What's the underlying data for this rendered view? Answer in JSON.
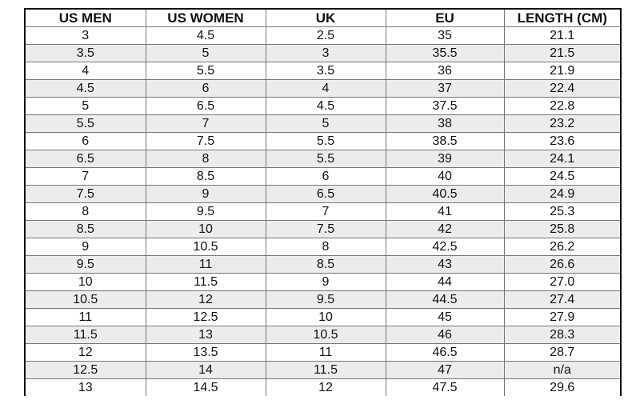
{
  "size_chart": {
    "headers": [
      "US MEN",
      "US WOMEN",
      "UK",
      "EU",
      "LENGTH (CM)"
    ],
    "rows": [
      [
        "3",
        "4.5",
        "2.5",
        "35",
        "21.1"
      ],
      [
        "3.5",
        "5",
        "3",
        "35.5",
        "21.5"
      ],
      [
        "4",
        "5.5",
        "3.5",
        "36",
        "21.9"
      ],
      [
        "4.5",
        "6",
        "4",
        "37",
        "22.4"
      ],
      [
        "5",
        "6.5",
        "4.5",
        "37.5",
        "22.8"
      ],
      [
        "5.5",
        "7",
        "5",
        "38",
        "23.2"
      ],
      [
        "6",
        "7.5",
        "5.5",
        "38.5",
        "23.6"
      ],
      [
        "6.5",
        "8",
        "5.5",
        "39",
        "24.1"
      ],
      [
        "7",
        "8.5",
        "6",
        "40",
        "24.5"
      ],
      [
        "7.5",
        "9",
        "6.5",
        "40.5",
        "24.9"
      ],
      [
        "8",
        "9.5",
        "7",
        "41",
        "25.3"
      ],
      [
        "8.5",
        "10",
        "7.5",
        "42",
        "25.8"
      ],
      [
        "9",
        "10.5",
        "8",
        "42.5",
        "26.2"
      ],
      [
        "9.5",
        "11",
        "8.5",
        "43",
        "26.6"
      ],
      [
        "10",
        "11.5",
        "9",
        "44",
        "27.0"
      ],
      [
        "10.5",
        "12",
        "9.5",
        "44.5",
        "27.4"
      ],
      [
        "11",
        "12.5",
        "10",
        "45",
        "27.9"
      ],
      [
        "11.5",
        "13",
        "10.5",
        "46",
        "28.3"
      ],
      [
        "12",
        "13.5",
        "11",
        "46.5",
        "28.7"
      ],
      [
        "12.5",
        "14",
        "11.5",
        "47",
        "n/a"
      ],
      [
        "13",
        "14.5",
        "12",
        "47.5",
        "29.6"
      ]
    ]
  },
  "colors": {
    "border": "#111111",
    "grid": "#777777",
    "row_stripe": "#ececec",
    "background": "#ffffff",
    "text": "#111111"
  }
}
